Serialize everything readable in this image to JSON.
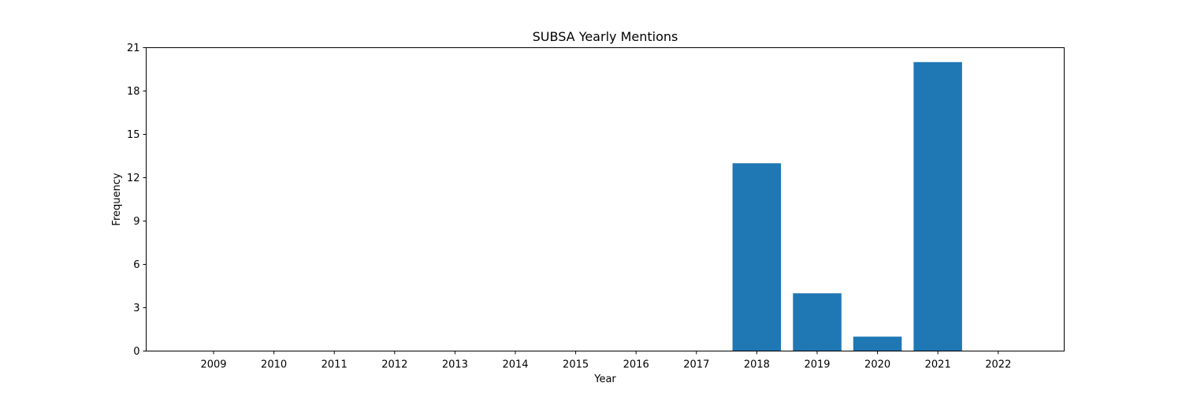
{
  "chart_data": {
    "type": "bar",
    "title": "SUBSA Yearly Mentions",
    "xlabel": "Year",
    "ylabel": "Frequency",
    "categories": [
      "2009",
      "2010",
      "2011",
      "2012",
      "2013",
      "2014",
      "2015",
      "2016",
      "2017",
      "2018",
      "2019",
      "2020",
      "2021",
      "2022"
    ],
    "values": [
      0,
      0,
      0,
      0,
      0,
      0,
      0,
      0,
      0,
      13,
      4,
      1,
      20,
      0
    ],
    "ylim": [
      0,
      21
    ],
    "yticks": [
      "0",
      "3",
      "6",
      "9",
      "12",
      "15",
      "18",
      "21"
    ],
    "grid": false,
    "bar_color": "#1f77b4"
  }
}
